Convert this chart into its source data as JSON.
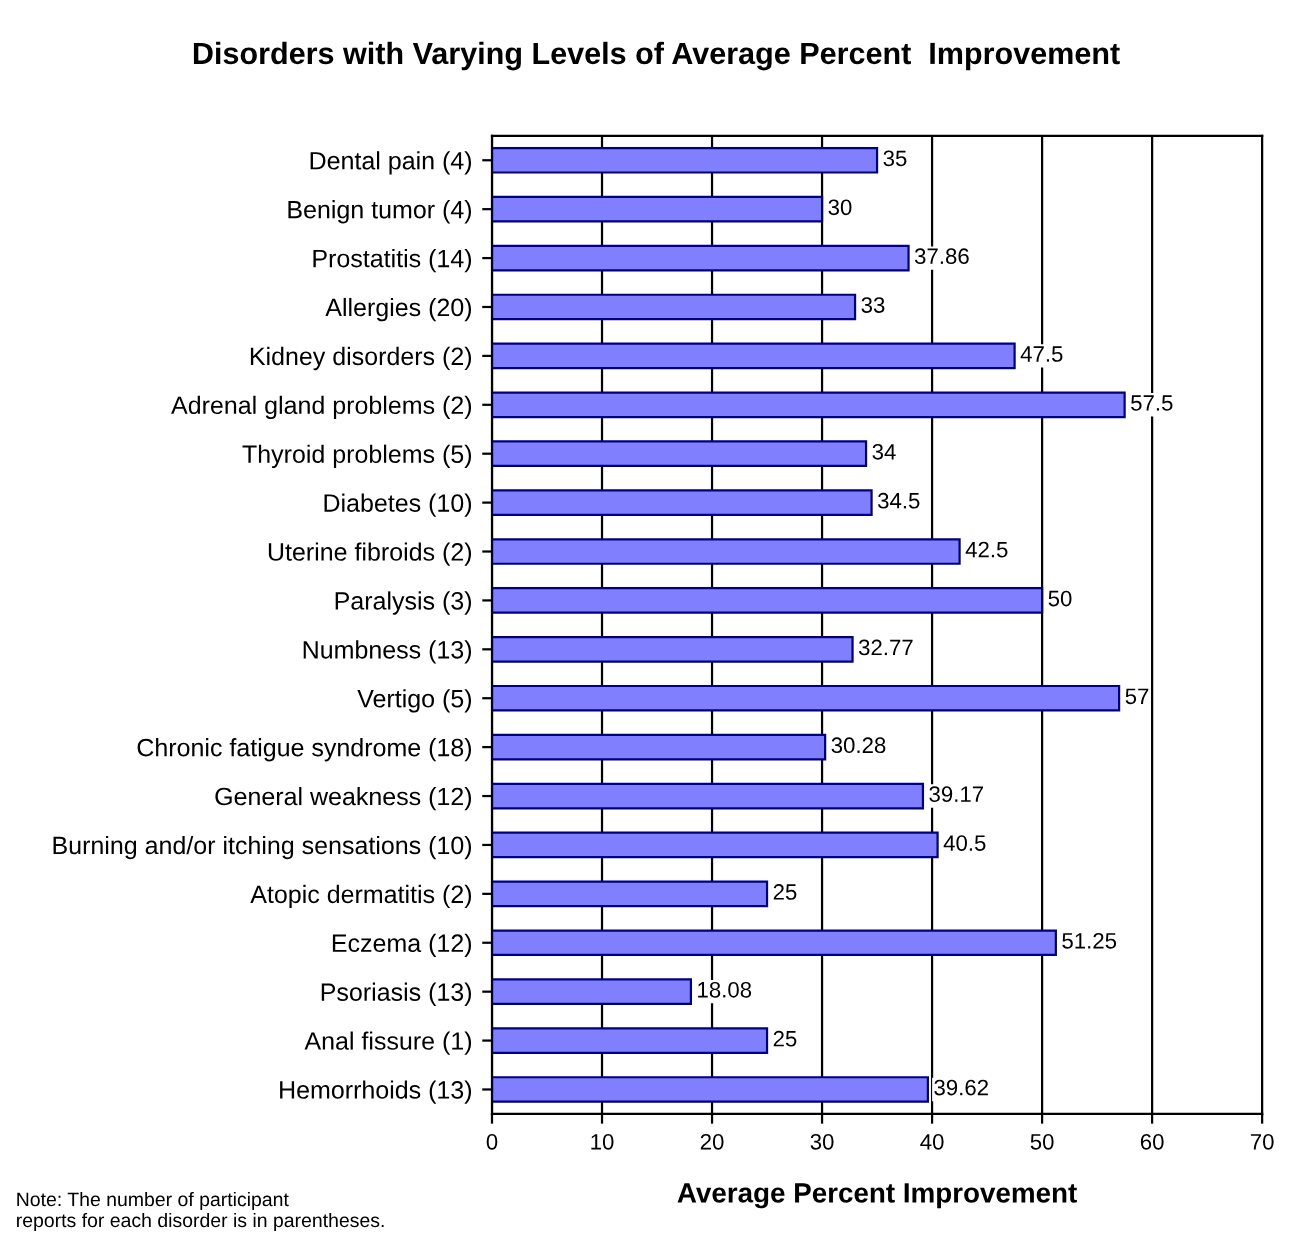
{
  "chart_data": {
    "type": "bar",
    "orientation": "horizontal",
    "title": "Disorders with Varying Levels of Average Percent  Improvement",
    "xlabel": "Average Percent Improvement",
    "categories": [
      "Dental pain (4)",
      "Benign tumor (4)",
      "Prostatitis (14)",
      "Allergies (20)",
      "Kidney disorders (2)",
      "Adrenal gland problems (2)",
      "Thyroid problems (5)",
      "Diabetes (10)",
      "Uterine fibroids (2)",
      "Paralysis (3)",
      "Numbness (13)",
      "Vertigo (5)",
      "Chronic fatigue syndrome (18)",
      "General weakness (12)",
      "Burning and/or itching sensations (10)",
      "Atopic dermatitis (2)",
      "Eczema (12)",
      "Psoriasis (13)",
      "Anal fissure (1)",
      "Hemorrhoids (13)"
    ],
    "values": [
      35,
      30,
      37.86,
      33,
      47.5,
      57.5,
      34,
      34.5,
      42.5,
      50,
      32.77,
      57,
      30.28,
      39.17,
      40.5,
      25,
      51.25,
      18.08,
      25,
      39.62
    ],
    "color": "#8080ff",
    "xlim": [
      0,
      70
    ],
    "xticks": [
      0,
      10,
      20,
      30,
      40,
      50,
      60,
      70
    ],
    "grid": "x",
    "data_labels": true,
    "legend": false,
    "annotations": [
      "Note: The number of participant\nreports for each disorder is in parentheses."
    ]
  }
}
